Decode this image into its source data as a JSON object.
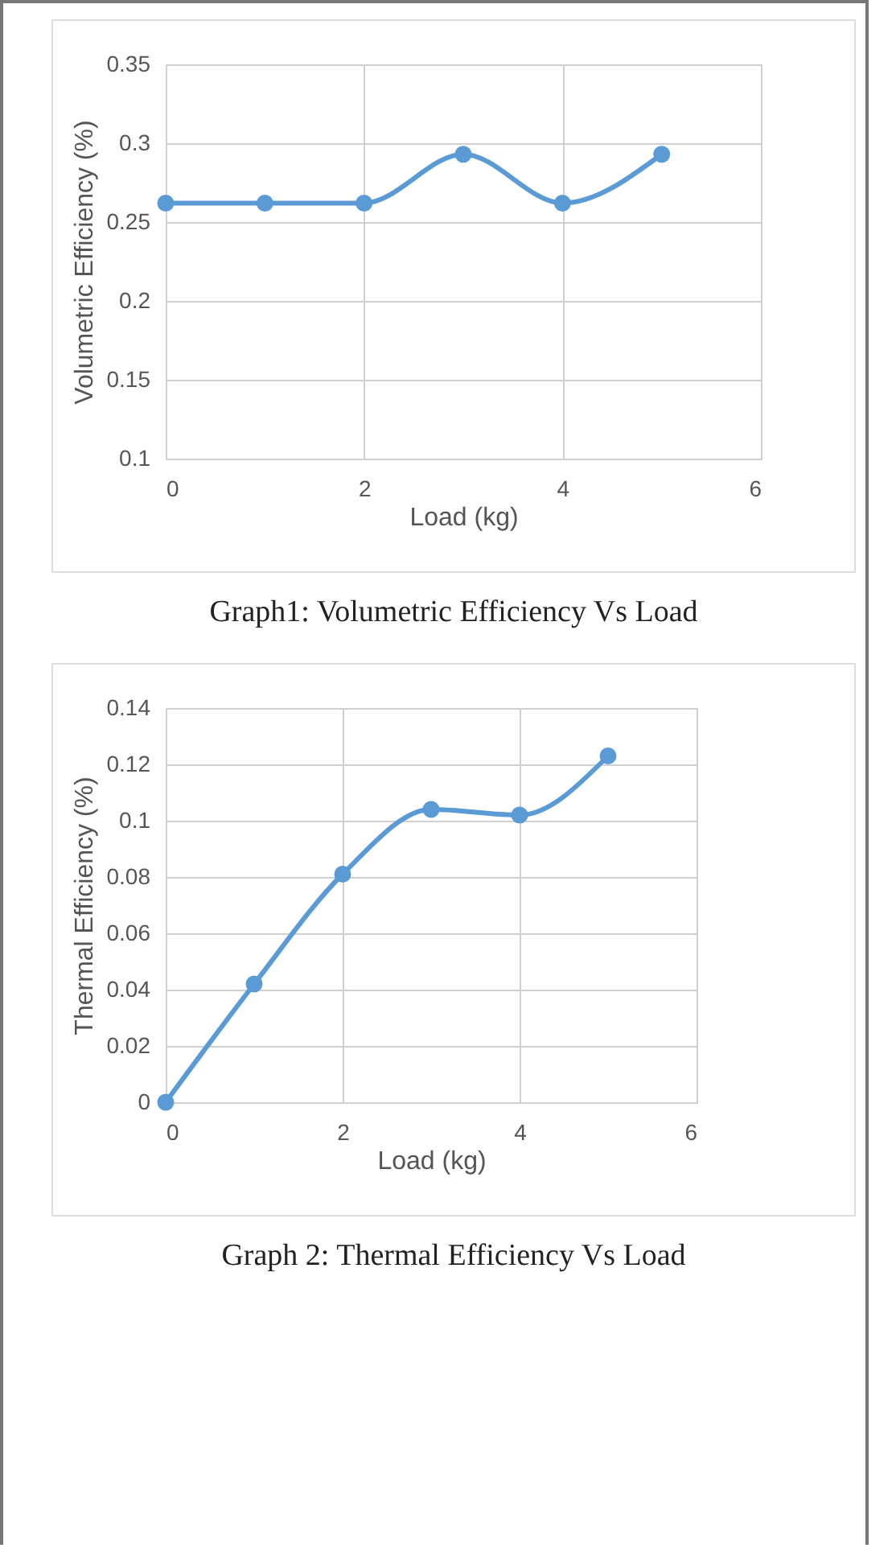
{
  "chart_data": [
    {
      "type": "line",
      "xlabel": "Load (kg)",
      "ylabel": "Volumetric Efficiency (%)",
      "x": [
        0,
        1,
        2,
        3,
        4,
        5
      ],
      "series": [
        {
          "color": "#5b9bd5",
          "values": [
            0.262,
            0.262,
            0.262,
            0.293,
            0.262,
            0.293
          ]
        }
      ],
      "xlim": [
        0,
        6
      ],
      "xticks": [
        0,
        2,
        4,
        6
      ],
      "ylim": [
        0.1,
        0.35
      ],
      "yticks": [
        0.1,
        0.15,
        0.2,
        0.25,
        0.3,
        0.35
      ],
      "grid": true,
      "marker": "circle",
      "line_style": "solid",
      "annotations": [
        "Graph1: Volumetric Efficiency Vs Load"
      ]
    },
    {
      "type": "line",
      "xlabel": "Load (kg)",
      "ylabel": "Thermal Efficiency (%)",
      "x": [
        0,
        1,
        2,
        3,
        4,
        5
      ],
      "series": [
        {
          "color": "#5b9bd5",
          "values": [
            0,
            0.042,
            0.081,
            0.104,
            0.102,
            0.123
          ]
        }
      ],
      "xlim": [
        0,
        6
      ],
      "xticks": [
        0,
        2,
        4,
        6
      ],
      "ylim": [
        0,
        0.14
      ],
      "yticks": [
        0,
        0.02,
        0.04,
        0.06,
        0.08,
        0.1,
        0.12,
        0.14
      ],
      "grid": true,
      "marker": "circle",
      "line_style": "solid",
      "annotations": [
        "Graph 2: Thermal Efficiency Vs Load"
      ]
    }
  ]
}
